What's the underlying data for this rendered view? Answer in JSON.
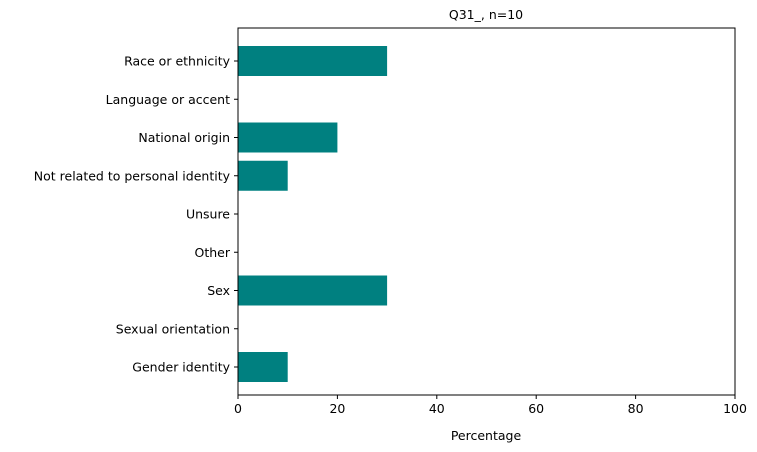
{
  "chart_data": {
    "type": "bar",
    "orientation": "horizontal",
    "title": "Q31_, n=10",
    "xlabel": "Percentage",
    "ylabel": "",
    "xlim": [
      0,
      100
    ],
    "xticks": [
      0,
      20,
      40,
      60,
      80,
      100
    ],
    "grid": false,
    "bar_color": "#008080",
    "categories": [
      "Race or ethnicity",
      "Language or accent",
      "National origin",
      "Not related to personal identity",
      "Unsure",
      "Other",
      "Sex",
      "Sexual orientation",
      "Gender identity"
    ],
    "values": [
      30,
      0,
      20,
      10,
      0,
      0,
      30,
      0,
      10
    ]
  }
}
